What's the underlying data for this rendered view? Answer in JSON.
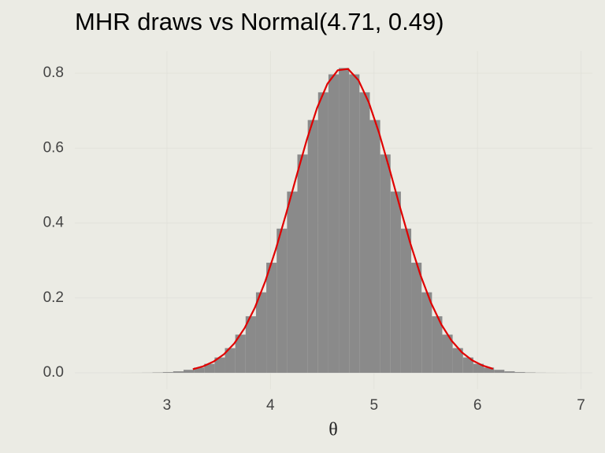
{
  "chart_data": {
    "type": "histogram",
    "title": "MHR draws vs Normal(4.71, 0.49)",
    "xlabel": "θ",
    "bins": [
      2.56,
      2.66,
      2.76,
      2.86,
      2.96,
      3.06,
      3.16,
      3.26,
      3.36,
      3.46,
      3.56,
      3.66,
      3.76,
      3.86,
      3.96,
      4.06,
      4.16,
      4.26,
      4.36,
      4.46,
      4.56,
      4.66,
      4.76,
      4.86,
      4.96,
      5.06,
      5.16,
      5.26,
      5.36,
      5.46,
      5.56,
      5.66,
      5.76,
      5.86,
      5.96,
      6.06,
      6.16,
      6.26,
      6.36,
      6.46,
      6.56,
      6.66,
      6.76,
      6.86
    ],
    "values": [
      0.0001,
      0.0002,
      0.0004,
      0.001,
      0.002,
      0.004,
      0.008,
      0.014,
      0.024,
      0.041,
      0.066,
      0.102,
      0.151,
      0.215,
      0.294,
      0.385,
      0.484,
      0.583,
      0.675,
      0.749,
      0.797,
      0.814,
      0.797,
      0.749,
      0.675,
      0.583,
      0.484,
      0.385,
      0.294,
      0.215,
      0.151,
      0.102,
      0.066,
      0.041,
      0.024,
      0.014,
      0.008,
      0.004,
      0.002,
      0.001,
      0.0004,
      0.0002,
      0.0001
    ],
    "color": "#8a8a8a",
    "curve": {
      "color": "#e00000",
      "x": [
        3.25,
        3.35,
        3.45,
        3.55,
        3.65,
        3.75,
        3.85,
        3.95,
        4.05,
        4.15,
        4.25,
        4.35,
        4.45,
        4.55,
        4.65,
        4.75,
        4.85,
        4.95,
        5.05,
        5.15,
        5.25,
        5.35,
        5.45,
        5.55,
        5.65,
        5.75,
        5.85,
        5.95,
        6.05,
        6.15
      ],
      "values": [
        0.0096,
        0.0173,
        0.0299,
        0.0494,
        0.0784,
        0.1194,
        0.1745,
        0.2445,
        0.3286,
        0.4236,
        0.5239,
        0.6214,
        0.7071,
        0.7718,
        0.8079,
        0.8113,
        0.7814,
        0.7219,
        0.6398,
        0.5439,
        0.4436,
        0.3468,
        0.2602,
        0.1873,
        0.1293,
        0.0856,
        0.0544,
        0.0331,
        0.0194,
        0.0108
      ]
    },
    "xlim": [
      2.11,
      7.11
    ],
    "ylim": [
      -0.044,
      0.859
    ],
    "xticks": [
      3,
      4,
      5,
      6,
      7
    ],
    "yticks": [
      {
        "value": 0,
        "label": "0.0"
      },
      0.2,
      0.4,
      0.6,
      0.8
    ],
    "grid": true
  }
}
